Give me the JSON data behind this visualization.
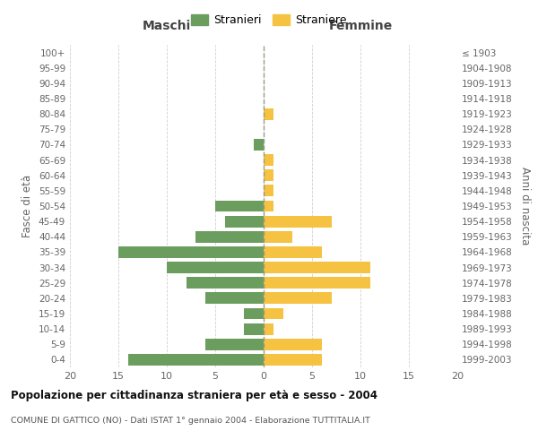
{
  "age_groups": [
    "0-4",
    "5-9",
    "10-14",
    "15-19",
    "20-24",
    "25-29",
    "30-34",
    "35-39",
    "40-44",
    "45-49",
    "50-54",
    "55-59",
    "60-64",
    "65-69",
    "70-74",
    "75-79",
    "80-84",
    "85-89",
    "90-94",
    "95-99",
    "100+"
  ],
  "birth_years": [
    "1999-2003",
    "1994-1998",
    "1989-1993",
    "1984-1988",
    "1979-1983",
    "1974-1978",
    "1969-1973",
    "1964-1968",
    "1959-1963",
    "1954-1958",
    "1949-1953",
    "1944-1948",
    "1939-1943",
    "1934-1938",
    "1929-1933",
    "1924-1928",
    "1919-1923",
    "1914-1918",
    "1909-1913",
    "1904-1908",
    "≤ 1903"
  ],
  "maschi": [
    14,
    6,
    2,
    2,
    6,
    8,
    10,
    15,
    7,
    4,
    5,
    0,
    0,
    0,
    1,
    0,
    0,
    0,
    0,
    0,
    0
  ],
  "femmine": [
    6,
    6,
    1,
    2,
    7,
    11,
    11,
    6,
    3,
    7,
    1,
    1,
    1,
    1,
    0,
    0,
    1,
    0,
    0,
    0,
    0
  ],
  "male_color": "#6b9e5e",
  "female_color": "#f5c242",
  "title": "Popolazione per cittadinanza straniera per età e sesso - 2004",
  "subtitle": "COMUNE DI GATTICO (NO) - Dati ISTAT 1° gennaio 2004 - Elaborazione TUTTITALIA.IT",
  "ylabel_left": "Fasce di età",
  "ylabel_right": "Anni di nascita",
  "xlabel_maschi": "Maschi",
  "xlabel_femmine": "Femmine",
  "legend_male": "Stranieri",
  "legend_female": "Straniere",
  "xlim": 20,
  "background_color": "#ffffff",
  "grid_color": "#d0d0d0"
}
